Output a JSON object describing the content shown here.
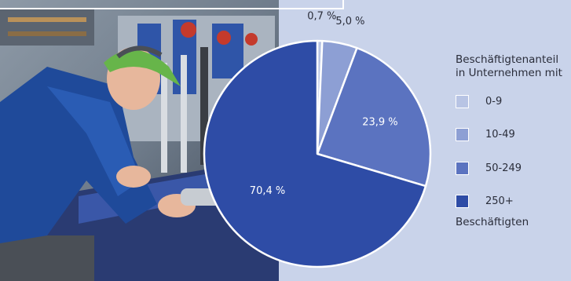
{
  "chart_data": {
    "type": "pie",
    "title": "",
    "legend_title": "Beschäftigtenanteil in Unternehmen mit",
    "legend_title_line1": "Beschäftigtenanteil",
    "legend_title_line2": "in Unternehmen mit",
    "legend_footer": "Beschäftigten",
    "legend_placement": "right",
    "categories": [
      "0-9",
      "10-49",
      "50-249",
      "250+"
    ],
    "values": [
      0.7,
      5.0,
      23.9,
      70.4
    ],
    "value_labels": [
      "0,7 %",
      "5,0 %",
      "23,9 %",
      "70,4 %"
    ],
    "colors": [
      "#b8c4e4",
      "#8d9fd4",
      "#5b73c0",
      "#2e4ca6"
    ]
  }
}
